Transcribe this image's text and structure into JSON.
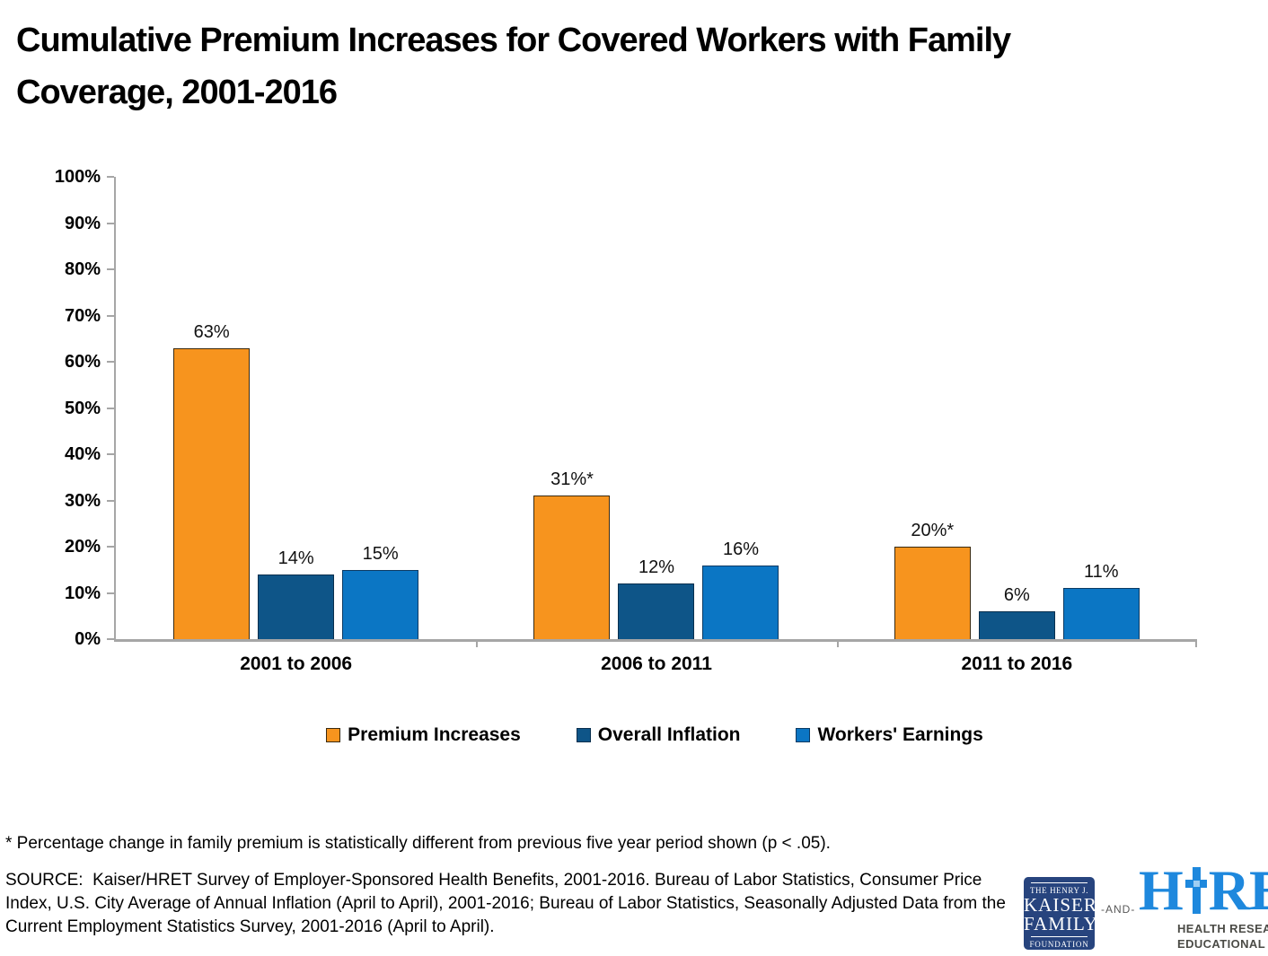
{
  "header": {
    "title_line1": "Cumulative Premium Increases for Covered Workers with Family",
    "title_line2": "Coverage, 2001-2016"
  },
  "chart_data": {
    "type": "bar",
    "title": "Cumulative Premium Increases for Covered Workers with Family Coverage, 2001-2016",
    "categories": [
      "2001 to 2006",
      "2006 to 2011",
      "2011 to 2016"
    ],
    "series": [
      {
        "name": "Premium Increases",
        "color": "#F7941E",
        "border_color": "#3A2A10",
        "values": [
          63,
          31,
          20
        ],
        "labels": [
          "63%",
          "31%*",
          "20%*"
        ]
      },
      {
        "name": "Overall Inflation",
        "color": "#0E5588",
        "border_color": "#092F4E",
        "values": [
          14,
          12,
          6
        ],
        "labels": [
          "14%",
          "12%",
          "6%"
        ]
      },
      {
        "name": "Workers' Earnings",
        "color": "#0B76C4",
        "border_color": "#0B3A63",
        "values": [
          15,
          16,
          11
        ],
        "labels": [
          "15%",
          "16%",
          "11%"
        ]
      }
    ],
    "ylim": [
      0,
      100
    ],
    "yticks": [
      "0%",
      "10%",
      "20%",
      "30%",
      "40%",
      "50%",
      "60%",
      "70%",
      "80%",
      "90%",
      "100%"
    ],
    "xlabel": "",
    "ylabel": "",
    "grid": false,
    "legend_position": "bottom"
  },
  "footnote": "* Percentage change in family premium is statistically different from previous five year period shown (p < .05).",
  "source": "SOURCE:  Kaiser/HRET Survey of Employer-Sponsored Health Benefits, 2001-2016. Bureau of Labor Statistics, Consumer Price Index, U.S. City Average of Annual Inflation (April to April), 2001-2016; Bureau of Labor Statistics, Seasonally Adjusted Data from the Current Employment Statistics Survey, 2001-2016 (April to April).",
  "logos": {
    "kff": {
      "line1": "THE HENRY J.",
      "line2": "KAISER",
      "line3": "FAMILY",
      "line4": "FOUNDATION",
      "bg_color": "#27447E"
    },
    "and_text": "-AND-",
    "hret": {
      "h": "H",
      "ret": "RET",
      "sub1": "HEALTH RESEARCH &",
      "sub2": "EDUCATIONAL TRUST",
      "color": "#1E88DD"
    }
  },
  "colors": {
    "axis": "#A6A6A6",
    "text": "#000000",
    "background": "#FFFFFF"
  }
}
